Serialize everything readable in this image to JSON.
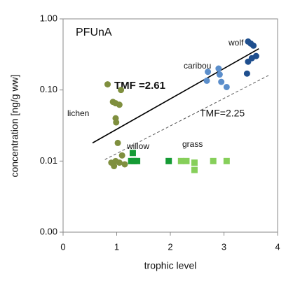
{
  "chart_data": {
    "type": "scatter",
    "title": "PFUnA",
    "x_label": "trophic level",
    "y_label": "concentration [ng/g ww]",
    "log_y": true,
    "xlim": [
      0,
      4
    ],
    "xticks": [
      0,
      1,
      2,
      3,
      4
    ],
    "ylim": [
      0.001,
      1
    ],
    "yticks": [
      {
        "value": 1,
        "label": "1.00"
      },
      {
        "value": 0.1,
        "label": "0.10"
      },
      {
        "value": 0.01,
        "label": "0.01"
      },
      {
        "value": 0.001,
        "label": "0.00"
      }
    ],
    "series": [
      {
        "name": "lichen",
        "color": "#7f8f3e",
        "marker": "circle",
        "x": [
          0.83,
          1.08,
          0.93,
          0.98,
          1.05,
          0.98,
          0.99,
          1.02,
          0.9,
          0.95,
          1.05,
          1.1,
          1.15,
          0.98
        ],
        "values": [
          0.12,
          0.1,
          0.068,
          0.065,
          0.062,
          0.04,
          0.035,
          0.018,
          0.0095,
          0.0085,
          0.0095,
          0.012,
          0.009,
          0.01
        ]
      },
      {
        "name": "willow",
        "color": "#159b35",
        "marker": "square",
        "x": [
          1.3,
          1.27,
          1.38,
          1.32,
          1.97
        ],
        "values": [
          0.013,
          0.01,
          0.01,
          0.01,
          0.01
        ]
      },
      {
        "name": "grass",
        "color": "#86cf5a",
        "marker": "square",
        "x": [
          2.2,
          2.3,
          2.45,
          2.45,
          2.8,
          3.05
        ],
        "values": [
          0.01,
          0.01,
          0.0095,
          0.0075,
          0.01,
          0.01
        ]
      },
      {
        "name": "caribou",
        "color": "#5b8ecb",
        "marker": "circle",
        "x": [
          2.7,
          2.68,
          2.9,
          2.92,
          2.95,
          3.05
        ],
        "values": [
          0.18,
          0.135,
          0.2,
          0.165,
          0.13,
          0.11
        ]
      },
      {
        "name": "wolf",
        "color": "#1f4f8e",
        "marker": "circle",
        "x": [
          3.45,
          3.5,
          3.55,
          3.6,
          3.52,
          3.45,
          3.43
        ],
        "values": [
          0.48,
          0.45,
          0.42,
          0.3,
          0.28,
          0.25,
          0.17
        ]
      }
    ],
    "lines": [
      {
        "name": "TMF =2.61",
        "dash": false,
        "x": [
          0.55,
          3.65
        ],
        "values": [
          0.018,
          0.38
        ]
      },
      {
        "name": "TMF=2.25",
        "dash": true,
        "x": [
          0.78,
          3.83
        ],
        "values": [
          0.0105,
          0.16
        ]
      }
    ]
  }
}
